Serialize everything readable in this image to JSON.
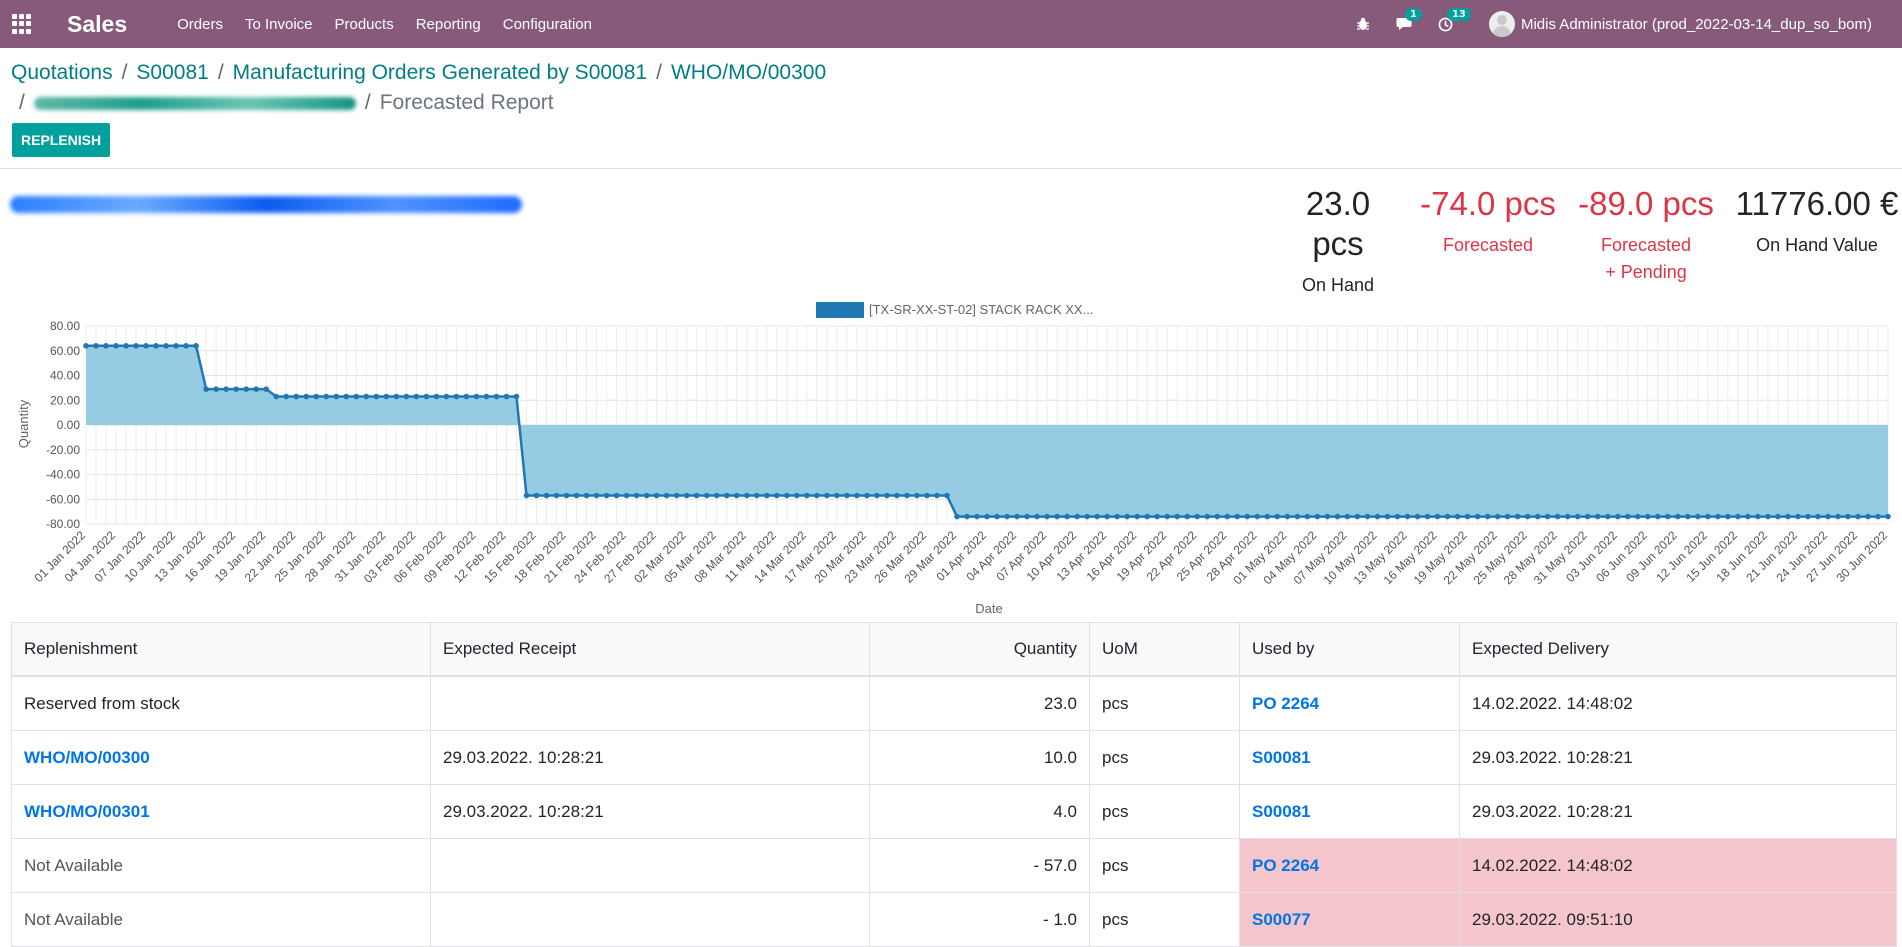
{
  "navbar": {
    "app_name": "Sales",
    "menu": [
      "Orders",
      "To Invoice",
      "Products",
      "Reporting",
      "Configuration"
    ],
    "messages_count": "1",
    "activities_count": "13",
    "user_name": "Midis Administrator (prod_2022-03-14_dup_so_bom)"
  },
  "breadcrumb": {
    "items": [
      "Quotations",
      "S00081",
      "Manufacturing Orders Generated by S00081",
      "WHO/MO/00300"
    ],
    "separator": "/",
    "current": "Forecasted Report"
  },
  "actions": {
    "replenish_label": "REPLENISH"
  },
  "kpis": [
    {
      "value": "23.0 pcs",
      "label": "On Hand"
    },
    {
      "value": "-74.0 pcs",
      "label": "Forecasted"
    },
    {
      "value": "-89.0 pcs",
      "label_line1": "Forecasted",
      "label_line2": "+ Pending"
    },
    {
      "value": "11776.00 €",
      "label": "On Hand Value"
    }
  ],
  "colors": {
    "navbar": "#875a7b",
    "primary": "#00a09d",
    "link": "#0075e6",
    "danger": "#dc3545",
    "chart_fill": "#90c9e0",
    "chart_line": "#1f78b4"
  },
  "chart_data": {
    "type": "area",
    "legend": "[TX-SR-XX-ST-02] STACK RACK XX...",
    "xlabel": "Date",
    "ylabel": "Quantity",
    "ylim": [
      -80,
      80
    ],
    "yticks": [
      "80.00",
      "60.00",
      "40.00",
      "20.00",
      "0.00",
      "-20.00",
      "-40.00",
      "-60.00",
      "-80.00"
    ],
    "x_tick_labels": [
      "01 Jan 2022",
      "04 Jan 2022",
      "07 Jan 2022",
      "10 Jan 2022",
      "13 Jan 2022",
      "16 Jan 2022",
      "19 Jan 2022",
      "22 Jan 2022",
      "25 Jan 2022",
      "28 Jan 2022",
      "31 Jan 2022",
      "03 Feb 2022",
      "06 Feb 2022",
      "09 Feb 2022",
      "12 Feb 2022",
      "15 Feb 2022",
      "18 Feb 2022",
      "21 Feb 2022",
      "24 Feb 2022",
      "27 Feb 2022",
      "02 Mar 2022",
      "05 Mar 2022",
      "08 Mar 2022",
      "11 Mar 2022",
      "14 Mar 2022",
      "17 Mar 2022",
      "20 Mar 2022",
      "23 Mar 2022",
      "26 Mar 2022",
      "29 Mar 2022",
      "01 Apr 2022",
      "04 Apr 2022",
      "07 Apr 2022",
      "10 Apr 2022",
      "13 Apr 2022",
      "16 Apr 2022",
      "19 Apr 2022",
      "22 Apr 2022",
      "25 Apr 2022",
      "28 Apr 2022",
      "01 May 2022",
      "04 May 2022",
      "07 May 2022",
      "10 May 2022",
      "13 May 2022",
      "16 May 2022",
      "19 May 2022",
      "22 May 2022",
      "25 May 2022",
      "28 May 2022",
      "31 May 2022",
      "03 Jun 2022",
      "06 Jun 2022",
      "09 Jun 2022",
      "12 Jun 2022",
      "15 Jun 2022",
      "18 Jun 2022",
      "21 Jun 2022",
      "24 Jun 2022",
      "27 Jun 2022",
      "30 Jun 2022"
    ],
    "segments": [
      {
        "from": "01 Jan 2022",
        "to": "12 Jan 2022",
        "value": 64
      },
      {
        "from": "13 Jan 2022",
        "to": "19 Jan 2022",
        "value": 29
      },
      {
        "from": "20 Jan 2022",
        "to": "13 Feb 2022",
        "value": 23
      },
      {
        "from": "14 Feb 2022",
        "to": "28 Mar 2022",
        "value": -57
      },
      {
        "from": "29 Mar 2022",
        "to": "30 Jun 2022",
        "value": -74
      }
    ],
    "grid": true,
    "legend_position": "top"
  },
  "table": {
    "headers": [
      "Replenishment",
      "Expected Receipt",
      "Quantity",
      "UoM",
      "Used by",
      "Expected Delivery"
    ],
    "rows": [
      {
        "replenishment": "Reserved from stock",
        "receipt": "",
        "quantity": "23.0",
        "uom": "pcs",
        "used_by": "PO 2264",
        "delivery": "14.02.2022. 14:48:02"
      },
      {
        "replenishment": "WHO/MO/00300",
        "receipt": "29.03.2022. 10:28:21",
        "quantity": "10.0",
        "uom": "pcs",
        "used_by": "S00081",
        "delivery": "29.03.2022. 10:28:21"
      },
      {
        "replenishment": "WHO/MO/00301",
        "receipt": "29.03.2022. 10:28:21",
        "quantity": "4.0",
        "uom": "pcs",
        "used_by": "S00081",
        "delivery": "29.03.2022. 10:28:21"
      },
      {
        "replenishment": "Not Available",
        "receipt": "",
        "quantity": "- 57.0",
        "uom": "pcs",
        "used_by": "PO 2264",
        "delivery": "14.02.2022. 14:48:02"
      },
      {
        "replenishment": "Not Available",
        "receipt": "",
        "quantity": "- 1.0",
        "uom": "pcs",
        "used_by": "S00077",
        "delivery": "29.03.2022. 09:51:10"
      }
    ]
  }
}
